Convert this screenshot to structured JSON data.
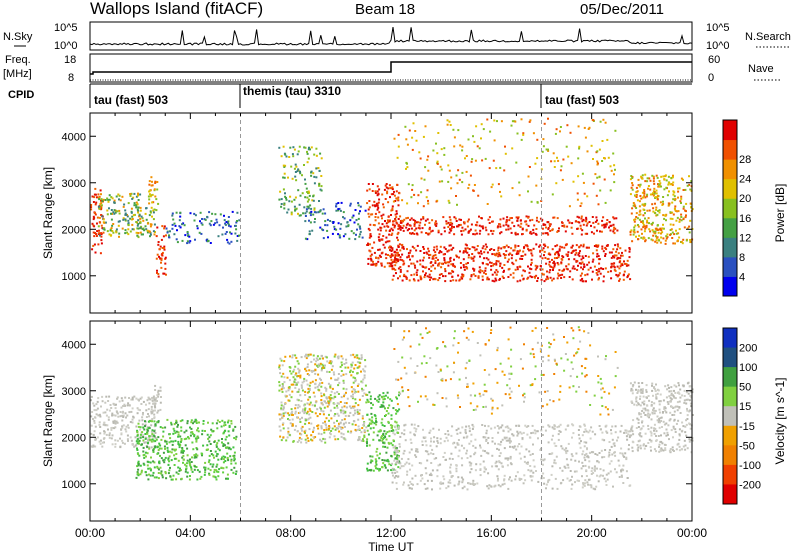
{
  "header": {
    "station": "Wallops Island (fitACF)",
    "beam": "Beam 18",
    "date": "05/Dec/2011"
  },
  "noise_panel": {
    "left_label": "N.Sky",
    "right_label": "N.Search",
    "left_ticks": [
      "10^5",
      "10^0"
    ],
    "right_ticks": [
      "10^5",
      "10^0"
    ]
  },
  "freq_panel": {
    "left_label_1": "Freq.",
    "left_label_2": "[MHz]",
    "right_label": "Nave",
    "left_ticks": [
      "18",
      "8"
    ],
    "right_ticks": [
      "60",
      "0"
    ]
  },
  "cpid_panel": {
    "label": "CPID",
    "segments": [
      {
        "text": "tau (fast) 503",
        "start_hour": 0
      },
      {
        "text": "themis (tau) 3310",
        "start_hour": 6
      },
      {
        "text": "tau (fast) 503",
        "start_hour": 18
      }
    ]
  },
  "chart_data": [
    {
      "type": "heatmap",
      "title": "",
      "xlabel": "Time UT",
      "ylabel": "Slant Range [km]",
      "xlim_hours": [
        0,
        24
      ],
      "ylim": [
        200,
        4500
      ],
      "xticks": [
        "00:00",
        "04:00",
        "08:00",
        "12:00",
        "16:00",
        "20:00",
        "00:00"
      ],
      "yticks": [
        1000,
        2000,
        3000,
        4000
      ],
      "colorbar": {
        "label": "Power [dB]",
        "ticks": [
          4,
          8,
          12,
          16,
          20,
          24,
          28
        ],
        "colors": [
          "#0000ee",
          "#2a50c0",
          "#3a8080",
          "#44a044",
          "#88c020",
          "#e0c000",
          "#f09000",
          "#f05000",
          "#e00000"
        ]
      },
      "scatter_regions": [
        {
          "t0": 0.0,
          "t1": 0.5,
          "r0": 1500,
          "r1": 2900,
          "level": "high"
        },
        {
          "t0": 0.3,
          "t1": 2.0,
          "r0": 1850,
          "r1": 2800,
          "level": "mid"
        },
        {
          "t0": 1.8,
          "t1": 2.6,
          "r0": 1800,
          "r1": 2500,
          "level": "mid"
        },
        {
          "t0": 2.3,
          "t1": 2.7,
          "r0": 2400,
          "r1": 3200,
          "level": "midhigh"
        },
        {
          "t0": 2.6,
          "t1": 3.0,
          "r0": 1000,
          "r1": 2100,
          "level": "high"
        },
        {
          "t0": 3.0,
          "t1": 6.0,
          "r0": 1700,
          "r1": 2400,
          "level": "low"
        },
        {
          "t0": 7.5,
          "t1": 9.2,
          "r0": 2300,
          "r1": 3800,
          "level": "lowmid"
        },
        {
          "t0": 8.5,
          "t1": 11.0,
          "r0": 1800,
          "r1": 2600,
          "level": "low"
        },
        {
          "t0": 11.0,
          "t1": 12.3,
          "r0": 1200,
          "r1": 3000,
          "level": "high"
        },
        {
          "t0": 12.0,
          "t1": 21.5,
          "r0": 900,
          "r1": 1700,
          "level": "high"
        },
        {
          "t0": 12.0,
          "t1": 21.0,
          "r0": 1900,
          "r1": 2300,
          "level": "high"
        },
        {
          "t0": 12.0,
          "t1": 21.0,
          "r0": 2500,
          "r1": 4400,
          "level": "sparse"
        },
        {
          "t0": 21.5,
          "t1": 24.0,
          "r0": 1700,
          "r1": 3200,
          "level": "midhigh"
        }
      ]
    },
    {
      "type": "heatmap",
      "title": "",
      "xlabel": "Time UT",
      "ylabel": "Slant Range [km]",
      "xlim_hours": [
        0,
        24
      ],
      "ylim": [
        200,
        4500
      ],
      "xticks": [
        "00:00",
        "04:00",
        "08:00",
        "12:00",
        "16:00",
        "20:00",
        "00:00"
      ],
      "yticks": [
        1000,
        2000,
        3000,
        4000
      ],
      "colorbar": {
        "label": "Velocity [m s^-1]",
        "ticks": [
          200,
          100,
          50,
          15,
          -15,
          -50,
          -100,
          -200
        ],
        "colors": [
          "#1030c0",
          "#205080",
          "#40a040",
          "#80d040",
          "#c0c0b8",
          "#f0a000",
          "#f08000",
          "#f04000",
          "#e00000"
        ]
      },
      "scatter_regions": [
        {
          "t0": 0.0,
          "t1": 2.6,
          "r0": 1800,
          "r1": 2900,
          "level": "gray"
        },
        {
          "t0": 1.8,
          "t1": 5.8,
          "r0": 1100,
          "r1": 2400,
          "level": "green"
        },
        {
          "t0": 2.4,
          "t1": 2.8,
          "r0": 2400,
          "r1": 3200,
          "level": "gray"
        },
        {
          "t0": 7.5,
          "t1": 11.0,
          "r0": 1900,
          "r1": 3800,
          "level": "graygreen"
        },
        {
          "t0": 11.0,
          "t1": 12.3,
          "r0": 1300,
          "r1": 3000,
          "level": "green"
        },
        {
          "t0": 12.0,
          "t1": 21.5,
          "r0": 900,
          "r1": 2300,
          "level": "gray"
        },
        {
          "t0": 12.0,
          "t1": 21.0,
          "r0": 2500,
          "r1": 4400,
          "level": "sparse"
        },
        {
          "t0": 21.5,
          "t1": 24.0,
          "r0": 1700,
          "r1": 3200,
          "level": "gray"
        }
      ]
    }
  ]
}
